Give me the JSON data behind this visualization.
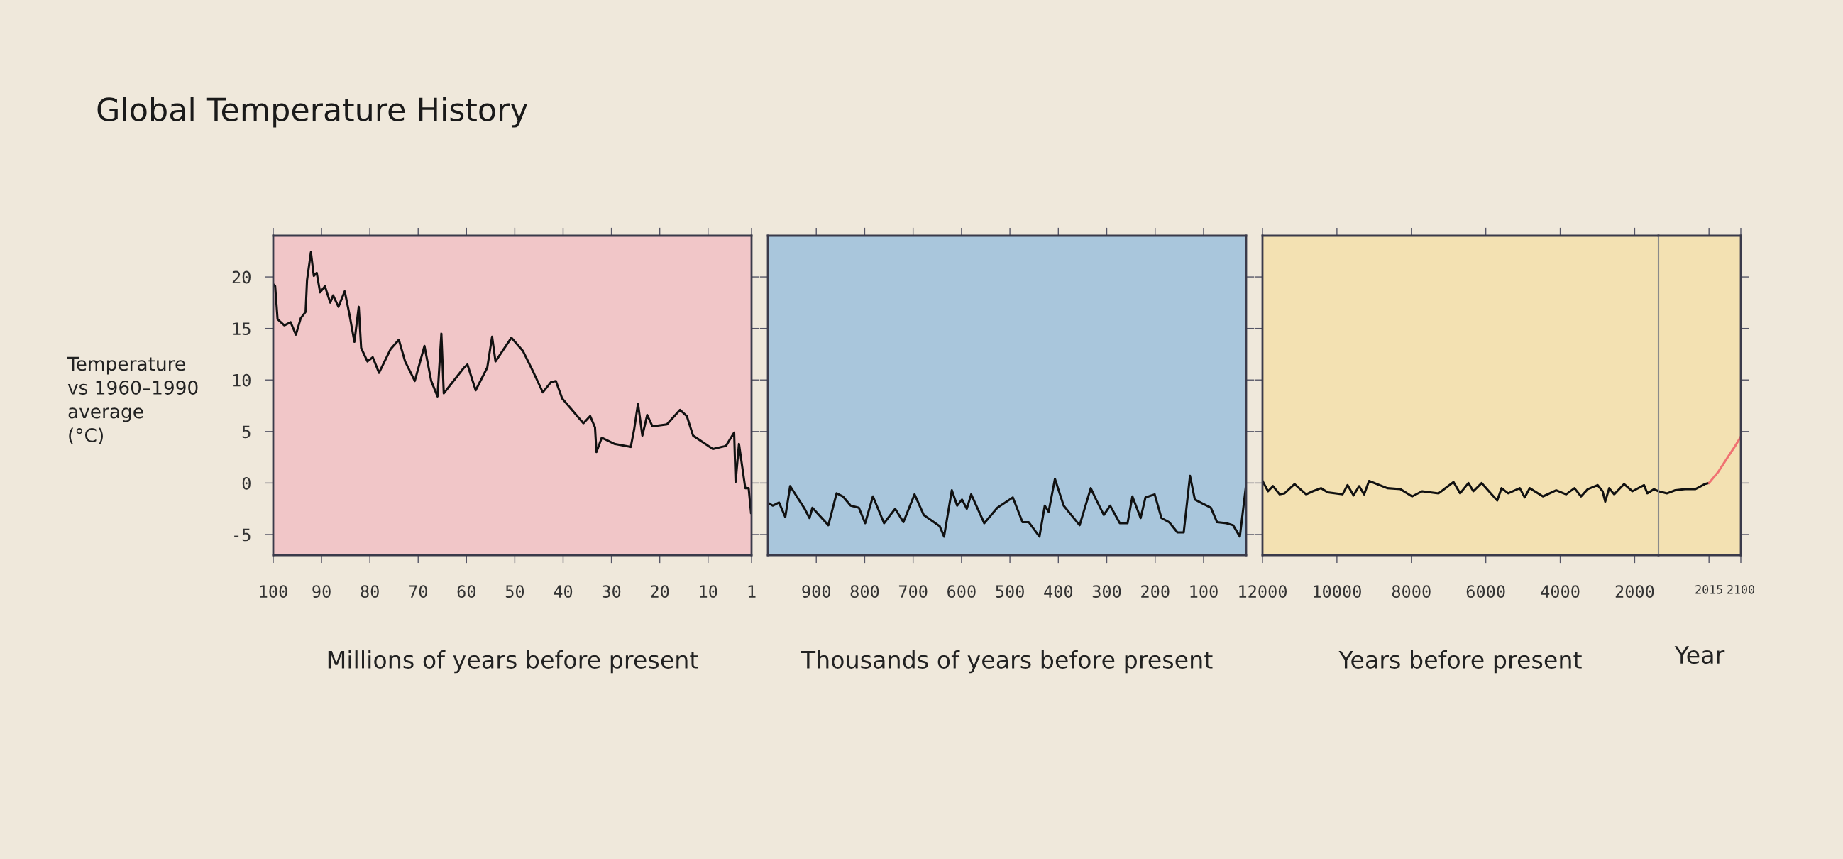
{
  "chart_data": [
    {
      "type": "line",
      "title": "Global Temperature History",
      "ylabel": "Temperature\nvs 1960–1990\naverage\n(°C)",
      "xlabel": "Millions of years before present",
      "xlim": [
        100,
        1
      ],
      "xticks": [
        100,
        90,
        80,
        70,
        60,
        50,
        40,
        30,
        20,
        10,
        1
      ],
      "ylim": [
        -7,
        24
      ],
      "yticks": [
        -5,
        0,
        5,
        10,
        15,
        20
      ],
      "grid": false,
      "legend": false,
      "series": [
        {
          "color": "#111111",
          "x": [
            100,
            99.6,
            99.1,
            97.7,
            96.4,
            95.3,
            94.3,
            93.3,
            93,
            92.2,
            91.6,
            91,
            90.3,
            89.3,
            88.2,
            87.6,
            86.5,
            85.2,
            84.2,
            83.2,
            82.3,
            81.8,
            80.5,
            79.4,
            78.1,
            75.7,
            74.0,
            72.7,
            70.7,
            68.7,
            67.3,
            66.0,
            65.2,
            64.7,
            63.2,
            60.5,
            59.8,
            58.1,
            55.7,
            54.7,
            54.0,
            50.7,
            48.3,
            46.3,
            44.2,
            42.5,
            41.5,
            40.2,
            35.8,
            34.4,
            33.4,
            33.1,
            32.0,
            29.4,
            26.0,
            25.3,
            24.5,
            23.6,
            22.6,
            21.5,
            18.5,
            15.8,
            14.4,
            13.1,
            9.0,
            6.3,
            4.6,
            4.3,
            3.6,
            2.3,
            1.6,
            1.1
          ],
          "values": [
            19.3,
            19.1,
            15.9,
            15.3,
            15.6,
            14.4,
            16.0,
            16.6,
            19.7,
            22.4,
            20.1,
            20.4,
            18.5,
            19.1,
            17.5,
            18.2,
            17.1,
            18.6,
            16.3,
            13.7,
            17.1,
            13.1,
            11.8,
            12.2,
            10.7,
            13.0,
            13.9,
            11.8,
            9.9,
            13.3,
            9.9,
            8.4,
            14.5,
            8.7,
            9.6,
            11.2,
            11.5,
            9.0,
            11.2,
            14.2,
            11.8,
            14.1,
            12.8,
            10.9,
            8.8,
            9.8,
            9.9,
            8.2,
            5.8,
            6.5,
            5.4,
            3.0,
            4.4,
            3.8,
            3.5,
            5.2,
            7.7,
            4.6,
            6.6,
            5.5,
            5.7,
            7.1,
            6.5,
            4.6,
            3.3,
            3.6,
            4.9,
            0.1,
            3.8,
            -0.5,
            -0.5,
            -2.9
          ]
        }
      ]
    },
    {
      "type": "line",
      "xlabel": "Thousands of years before present",
      "xlim": [
        1000,
        12
      ],
      "xticks": [
        900,
        800,
        700,
        600,
        500,
        400,
        300,
        200,
        100
      ],
      "ylim": [
        -7,
        24
      ],
      "yticks": [
        -5,
        0,
        5,
        10,
        15,
        20
      ],
      "tick_labels": "x",
      "grid": false,
      "legend": false,
      "series": [
        {
          "color": "#111111",
          "x": [
            1000,
            990,
            977,
            964,
            954,
            924,
            914,
            908,
            875,
            858,
            845,
            829,
            812,
            799,
            783,
            760,
            737,
            720,
            697,
            678,
            645,
            636,
            620,
            609,
            599,
            589,
            580,
            553,
            526,
            494,
            474,
            461,
            439,
            428,
            420,
            407,
            389,
            356,
            333,
            322,
            306,
            293,
            273,
            257,
            247,
            230,
            220,
            201,
            187,
            171,
            154,
            141,
            128,
            118,
            102,
            85,
            72,
            53,
            39,
            25,
            13
          ],
          "values": [
            -1.9,
            -2.2,
            -1.9,
            -3.3,
            -0.3,
            -2.5,
            -3.4,
            -2.4,
            -4.1,
            -1.0,
            -1.3,
            -2.2,
            -2.4,
            -3.9,
            -1.3,
            -3.9,
            -2.5,
            -3.8,
            -1.1,
            -3.1,
            -4.2,
            -5.2,
            -0.7,
            -2.2,
            -1.6,
            -2.5,
            -1.1,
            -3.9,
            -2.4,
            -1.4,
            -3.8,
            -3.8,
            -5.2,
            -2.2,
            -2.8,
            0.4,
            -2.2,
            -4.1,
            -0.5,
            -1.6,
            -3.1,
            -2.2,
            -3.9,
            -3.9,
            -1.3,
            -3.4,
            -1.4,
            -1.1,
            -3.4,
            -3.8,
            -4.8,
            -4.8,
            0.7,
            -1.6,
            -2.0,
            -2.4,
            -3.8,
            -3.9,
            -4.1,
            -5.2,
            -0.5
          ]
        }
      ]
    },
    {
      "type": "line",
      "xlabel": "Years before present",
      "xlim": [
        12000,
        1360
      ],
      "xticks": [
        12000,
        10000,
        8000,
        6000,
        4000,
        2000
      ],
      "ylim": [
        -7,
        24
      ],
      "yticks": [
        -5,
        0,
        5,
        10,
        15,
        20
      ],
      "tick_labels": "x",
      "grid": false,
      "legend": false,
      "series": [
        {
          "color": "#111111",
          "x": [
            12000,
            11851,
            11718,
            11540,
            11406,
            11139,
            10828,
            10650,
            10427,
            10249,
            9849,
            9715,
            9555,
            9404,
            9270,
            9137,
            8647,
            8291,
            7980,
            7713,
            7268,
            6867,
            6689,
            6467,
            6334,
            6111,
            5844,
            5693,
            5577,
            5399,
            5087,
            4954,
            4821,
            4464,
            4108,
            3841,
            3619,
            3441,
            3263,
            2996,
            2862,
            2791,
            2684,
            2551,
            2284,
            2061,
            1749,
            1660,
            1482,
            1360
          ],
          "values": [
            0.2,
            -0.8,
            -0.3,
            -1.1,
            -1.0,
            -0.1,
            -1.1,
            -0.8,
            -0.5,
            -0.9,
            -1.1,
            -0.2,
            -1.2,
            -0.3,
            -1.1,
            0.2,
            -0.5,
            -0.6,
            -1.3,
            -0.8,
            -1.0,
            0.1,
            -1.0,
            0.0,
            -0.8,
            0.0,
            -1.1,
            -1.7,
            -0.5,
            -1.0,
            -0.5,
            -1.4,
            -0.5,
            -1.3,
            -0.7,
            -1.1,
            -0.5,
            -1.3,
            -0.6,
            -0.2,
            -0.8,
            -1.8,
            -0.5,
            -1.1,
            -0.1,
            -0.8,
            -0.2,
            -1.0,
            -0.6,
            -0.8
          ]
        }
      ]
    },
    {
      "type": "line",
      "xlabel": "Year",
      "xlim": [
        1880,
        2100
      ],
      "xticks": [
        2015,
        2100
      ],
      "ylim": [
        -7,
        24
      ],
      "yticks": [
        -5,
        0,
        5,
        10,
        15,
        20
      ],
      "tick_labels": "x",
      "grid": false,
      "legend": false,
      "series": [
        {
          "color": "#111111",
          "x": [
            1880,
            1903,
            1925,
            1951,
            1978,
            2004,
            2015
          ],
          "values": [
            -0.8,
            -1.0,
            -0.7,
            -0.6,
            -0.6,
            -0.1,
            0.0
          ]
        },
        {
          "color": "#f07272",
          "x": [
            2015,
            2040,
            2065,
            2085,
            2100
          ],
          "values": [
            0.0,
            1.1,
            2.5,
            3.6,
            4.5
          ]
        }
      ]
    }
  ]
}
